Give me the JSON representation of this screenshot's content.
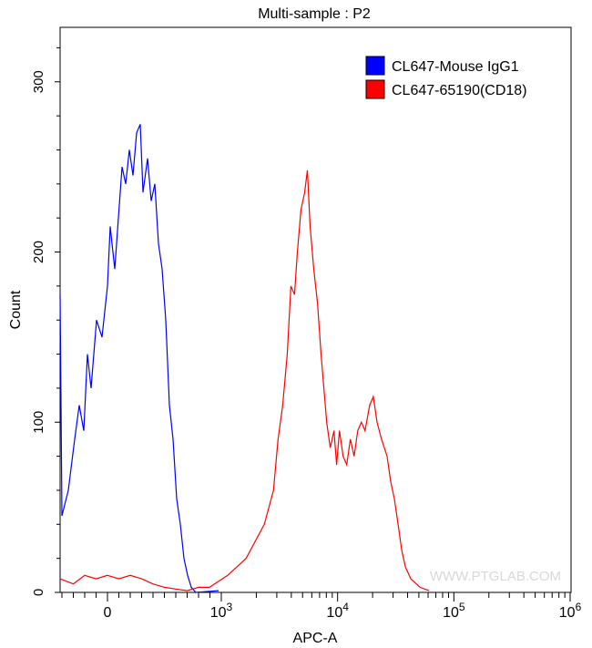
{
  "chart_data": {
    "type": "line",
    "title": "Multi-sample : P2",
    "xlabel": "APC-A",
    "ylabel": "Count",
    "x_scale": "biexponential (linear near 0, log above 10^3)",
    "xlim": [
      -416,
      1000000
    ],
    "ylim": [
      0,
      332
    ],
    "y_ticks": [
      0,
      100,
      200,
      300
    ],
    "x_ticks": [
      {
        "value": 0,
        "base": "0",
        "exp": ""
      },
      {
        "value": 1000,
        "base": "10",
        "exp": "3"
      },
      {
        "value": 10000,
        "base": "10",
        "exp": "4"
      },
      {
        "value": 100000,
        "base": "10",
        "exp": "5"
      },
      {
        "value": 1000000,
        "base": "10",
        "exp": "6"
      }
    ],
    "legend_position": "top-right",
    "series": [
      {
        "name": "CL647-Mouse IgG1",
        "color": "#0000ff",
        "x": [
          -416,
          -400,
          -344,
          -288,
          -248,
          -208,
          -176,
          -144,
          -96,
          -48,
          0,
          24,
          64,
          96,
          128,
          160,
          192,
          224,
          256,
          288,
          312,
          352,
          384,
          416,
          448,
          480,
          512,
          544,
          576,
          608,
          640,
          672,
          704,
          736,
          776,
          976
        ],
        "y": [
          175,
          45,
          60,
          90,
          110,
          95,
          140,
          120,
          160,
          150,
          180,
          215,
          190,
          220,
          250,
          240,
          260,
          245,
          270,
          275,
          235,
          255,
          230,
          240,
          205,
          190,
          160,
          110,
          90,
          55,
          40,
          20,
          10,
          3,
          0,
          1
        ]
      },
      {
        "name": "CL647-65190(CD18)",
        "color": "#ff0000",
        "x": [
          -416,
          -300,
          -200,
          -100,
          0,
          100,
          200,
          300,
          400,
          500,
          600,
          700,
          800,
          896,
          1135,
          1633,
          2344,
          2812,
          3077,
          3372,
          3690,
          3966,
          4266,
          4508,
          4842,
          5210,
          5495,
          5808,
          6240,
          6714,
          7211,
          7621,
          8054,
          8650,
          9311,
          9817,
          10380,
          11150,
          11990,
          12880,
          13870,
          14900,
          16030,
          17220,
          18880,
          20280,
          21830,
          23880,
          26620,
          28640,
          30760,
          33110,
          35560,
          38280,
          42660,
          51170,
          61240
        ],
        "y": [
          8,
          5,
          10,
          8,
          10,
          8,
          10,
          8,
          5,
          3,
          2,
          1,
          3,
          3,
          10,
          20,
          40,
          60,
          90,
          110,
          140,
          180,
          175,
          200,
          225,
          235,
          248,
          215,
          190,
          170,
          140,
          120,
          100,
          85,
          95,
          75,
          95,
          80,
          75,
          90,
          80,
          95,
          100,
          95,
          110,
          115,
          100,
          90,
          80,
          65,
          55,
          40,
          25,
          15,
          8,
          3,
          1
        ]
      }
    ]
  },
  "watermark": "WWW.PTGLAB.COM"
}
